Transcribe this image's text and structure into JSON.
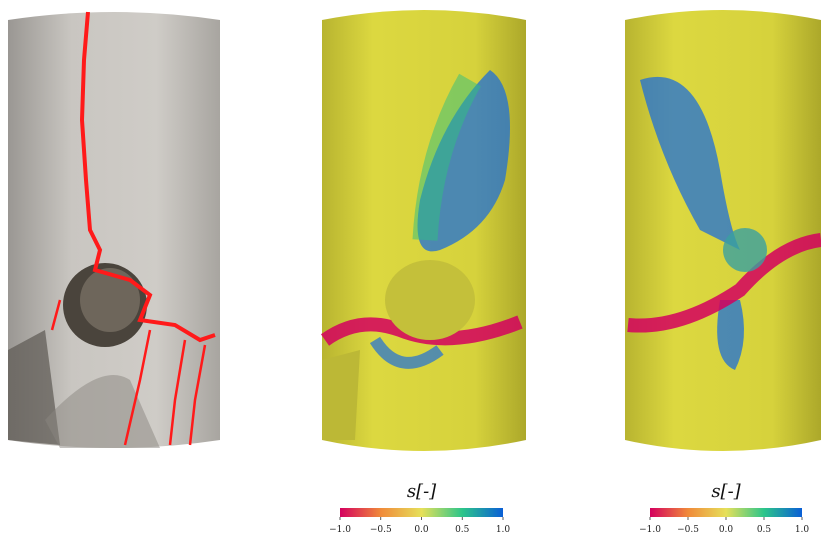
{
  "colorbars": [
    {
      "label": "s[-]",
      "ticks": [
        {
          "value": -1,
          "label": "−1.0"
        },
        {
          "value": -0.5,
          "label": "−0.5"
        },
        {
          "value": 0,
          "label": "0.0"
        },
        {
          "value": 0.5,
          "label": "0.5"
        },
        {
          "value": 1,
          "label": "1.0"
        }
      ]
    },
    {
      "label": "s[-]",
      "ticks": [
        {
          "value": -1,
          "label": "−1.0"
        },
        {
          "value": -0.5,
          "label": "−0.5"
        },
        {
          "value": 0,
          "label": "0.0"
        },
        {
          "value": 0.5,
          "label": "0.5"
        },
        {
          "value": 1,
          "label": "1.0"
        }
      ]
    }
  ]
}
